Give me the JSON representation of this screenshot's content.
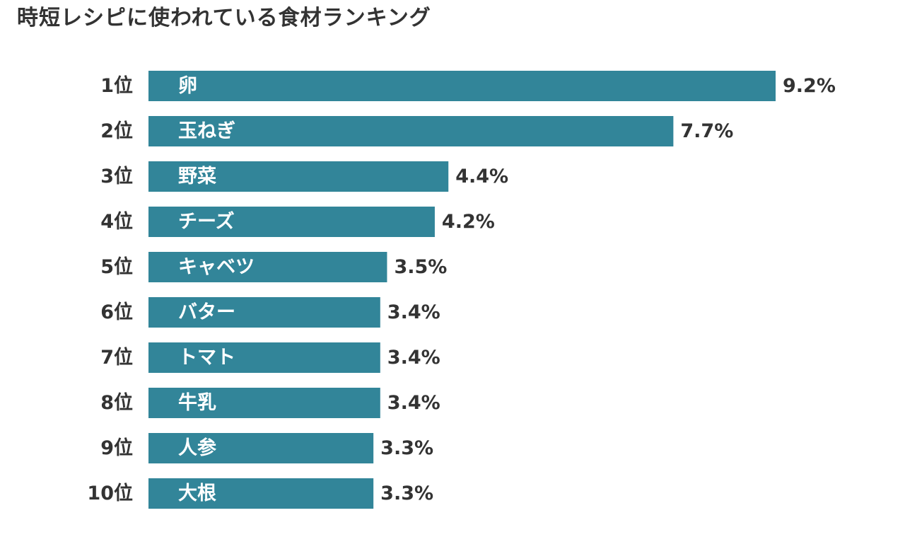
{
  "chart_data": {
    "type": "bar",
    "orientation": "horizontal",
    "title": "時短レシピに使われている食材ランキング",
    "bar_color": "#328599",
    "ranks": [
      "1位",
      "2位",
      "3位",
      "4位",
      "5位",
      "6位",
      "7位",
      "8位",
      "9位",
      "10位"
    ],
    "categories": [
      "卵",
      "玉ねぎ",
      "野菜",
      "チーズ",
      "キャベツ",
      "バター",
      "トマト",
      "牛乳",
      "人参",
      "大根"
    ],
    "values": [
      9.2,
      7.7,
      4.4,
      4.2,
      3.5,
      3.4,
      3.4,
      3.4,
      3.3,
      3.3
    ],
    "value_labels": [
      "9.2%",
      "7.7%",
      "4.4%",
      "4.2%",
      "3.5%",
      "3.4%",
      "3.4%",
      "3.4%",
      "3.3%",
      "3.3%"
    ],
    "xlim": [
      0,
      9.2
    ],
    "xlabel": "",
    "ylabel": "",
    "grid": false,
    "legend": false
  }
}
